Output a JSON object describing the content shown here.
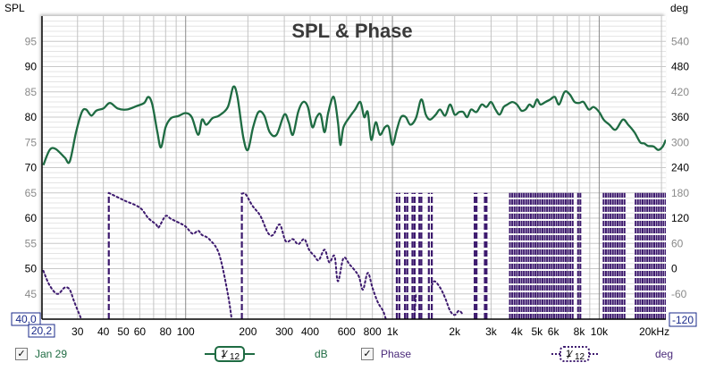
{
  "chart_data": {
    "type": "line",
    "title": "SPL & Phase",
    "left_axis": {
      "label": "SPL",
      "range": [
        40,
        100
      ],
      "ticks": [
        45,
        50,
        55,
        60,
        65,
        70,
        75,
        80,
        85,
        90,
        95
      ],
      "major_ticks": [
        50,
        60,
        70,
        80,
        90
      ]
    },
    "right_axis": {
      "label": "deg",
      "range": [
        -120,
        600
      ],
      "ticks": [
        -60,
        0,
        60,
        120,
        180,
        240,
        300,
        360,
        420,
        480,
        540
      ],
      "major_ticks": [
        0,
        120,
        240,
        360,
        480
      ]
    },
    "x_axis": {
      "scale": "log",
      "range": [
        20.2,
        21000
      ],
      "unit": "kHz",
      "tick_labels": [
        {
          "f": 30,
          "label": "30"
        },
        {
          "f": 40,
          "label": "40"
        },
        {
          "f": 50,
          "label": "50"
        },
        {
          "f": 60,
          "label": "60"
        },
        {
          "f": 80,
          "label": "80"
        },
        {
          "f": 100,
          "label": "100"
        },
        {
          "f": 200,
          "label": "200"
        },
        {
          "f": 300,
          "label": "300"
        },
        {
          "f": 400,
          "label": "400"
        },
        {
          "f": 600,
          "label": "600"
        },
        {
          "f": 800,
          "label": "800"
        },
        {
          "f": 1000,
          "label": "1k"
        },
        {
          "f": 2000,
          "label": "2k"
        },
        {
          "f": 3000,
          "label": "3k"
        },
        {
          "f": 4000,
          "label": "4k"
        },
        {
          "f": 5000,
          "label": "5k"
        },
        {
          "f": 6000,
          "label": "6k"
        },
        {
          "f": 8000,
          "label": "8k"
        },
        {
          "f": 10000,
          "label": "10k"
        },
        {
          "f": 20000,
          "label": "20kHz"
        }
      ]
    },
    "corner_labels": {
      "y_min": "40,0",
      "x_min": "20,2",
      "right_min": "-120"
    },
    "grid": true,
    "series": [
      {
        "name": "Jan 29",
        "axis": "left",
        "color": "#1e6b42",
        "style": "solid",
        "points": [
          [
            20.5,
            70.5
          ],
          [
            22,
            73.5
          ],
          [
            23.5,
            73.7
          ],
          [
            26,
            72
          ],
          [
            27.5,
            71.2
          ],
          [
            29.5,
            77
          ],
          [
            31.5,
            81
          ],
          [
            33,
            81.5
          ],
          [
            35,
            80.3
          ],
          [
            37,
            81.3
          ],
          [
            40,
            81.7
          ],
          [
            43,
            82.8
          ],
          [
            47,
            81.7
          ],
          [
            52,
            81.5
          ],
          [
            58,
            82.2
          ],
          [
            63,
            82.8
          ],
          [
            66,
            84
          ],
          [
            69,
            82.5
          ],
          [
            73,
            77
          ],
          [
            76,
            74
          ],
          [
            80,
            78
          ],
          [
            85,
            79.8
          ],
          [
            92,
            80.2
          ],
          [
            100,
            80.8
          ],
          [
            107,
            80
          ],
          [
            115,
            76.5
          ],
          [
            120,
            79.5
          ],
          [
            126,
            78.5
          ],
          [
            135,
            79.8
          ],
          [
            145,
            80.3
          ],
          [
            160,
            82
          ],
          [
            170,
            86
          ],
          [
            178,
            84
          ],
          [
            190,
            76
          ],
          [
            200,
            73.5
          ],
          [
            212,
            78
          ],
          [
            225,
            81
          ],
          [
            240,
            80.3
          ],
          [
            255,
            77
          ],
          [
            275,
            76.5
          ],
          [
            300,
            80.5
          ],
          [
            315,
            79
          ],
          [
            330,
            76.5
          ],
          [
            350,
            81
          ],
          [
            370,
            83
          ],
          [
            390,
            82
          ],
          [
            410,
            78
          ],
          [
            430,
            80
          ],
          [
            450,
            80.5
          ],
          [
            470,
            77
          ],
          [
            490,
            81
          ],
          [
            520,
            84
          ],
          [
            545,
            79
          ],
          [
            560,
            74.5
          ],
          [
            580,
            78
          ],
          [
            620,
            80
          ],
          [
            660,
            81.5
          ],
          [
            700,
            83
          ],
          [
            730,
            80
          ],
          [
            760,
            81
          ],
          [
            790,
            75.5
          ],
          [
            830,
            79
          ],
          [
            870,
            76.5
          ],
          [
            920,
            78
          ],
          [
            960,
            78
          ],
          [
            1000,
            74.5
          ],
          [
            1050,
            77.5
          ],
          [
            1100,
            80
          ],
          [
            1160,
            80
          ],
          [
            1220,
            78.5
          ],
          [
            1300,
            79.8
          ],
          [
            1380,
            83.5
          ],
          [
            1450,
            80.5
          ],
          [
            1520,
            79.5
          ],
          [
            1620,
            80.5
          ],
          [
            1700,
            81.5
          ],
          [
            1800,
            80.3
          ],
          [
            1900,
            82.5
          ],
          [
            2000,
            80.5
          ],
          [
            2100,
            81
          ],
          [
            2200,
            81
          ],
          [
            2300,
            80
          ],
          [
            2400,
            81.5
          ],
          [
            2550,
            81
          ],
          [
            2700,
            82.5
          ],
          [
            2850,
            82
          ],
          [
            3000,
            83
          ],
          [
            3150,
            81.5
          ],
          [
            3300,
            80.5
          ],
          [
            3450,
            82
          ],
          [
            3600,
            82.5
          ],
          [
            3800,
            83
          ],
          [
            4000,
            82.5
          ],
          [
            4200,
            81.3
          ],
          [
            4400,
            81.5
          ],
          [
            4600,
            82.5
          ],
          [
            4800,
            82
          ],
          [
            5000,
            83.5
          ],
          [
            5200,
            82.5
          ],
          [
            5500,
            83
          ],
          [
            5800,
            83.5
          ],
          [
            6100,
            84
          ],
          [
            6400,
            82.5
          ],
          [
            6800,
            85
          ],
          [
            7200,
            84.5
          ],
          [
            7600,
            83
          ],
          [
            8000,
            82.8
          ],
          [
            8400,
            83
          ],
          [
            8900,
            81.5
          ],
          [
            9400,
            82
          ],
          [
            10000,
            81
          ],
          [
            10500,
            79.5
          ],
          [
            11200,
            78.5
          ],
          [
            12000,
            77.5
          ],
          [
            13000,
            79.5
          ],
          [
            13800,
            78.5
          ],
          [
            14800,
            77
          ],
          [
            15800,
            75
          ],
          [
            16500,
            74.8
          ],
          [
            17200,
            74.3
          ],
          [
            18300,
            74.2
          ],
          [
            19300,
            73.5
          ],
          [
            20300,
            74.2
          ],
          [
            21000,
            75.5
          ]
        ]
      },
      {
        "name": "Phase",
        "axis": "right",
        "color": "#3d1a6e",
        "style": "dotted",
        "wrap_at": [
          -120,
          180
        ],
        "points": [
          [
            20.5,
            -5
          ],
          [
            22,
            -40
          ],
          [
            24,
            -60
          ],
          [
            26,
            -45
          ],
          [
            27.5,
            -50
          ],
          [
            29,
            -80
          ],
          [
            31,
            -115
          ],
          [
            32,
            -130
          ],
          [
            42.5,
            180
          ],
          [
            50,
            163
          ],
          [
            60,
            145
          ],
          [
            66,
            120
          ],
          [
            72,
            105
          ],
          [
            74,
            98
          ],
          [
            80,
            125
          ],
          [
            85,
            118
          ],
          [
            92,
            110
          ],
          [
            100,
            100
          ],
          [
            108,
            83
          ],
          [
            115,
            90
          ],
          [
            120,
            80
          ],
          [
            130,
            70
          ],
          [
            145,
            35
          ],
          [
            160,
            -60
          ],
          [
            168,
            -130
          ],
          [
            187,
            178
          ],
          [
            195,
            177
          ],
          [
            210,
            150
          ],
          [
            230,
            125
          ],
          [
            250,
            85
          ],
          [
            265,
            80
          ],
          [
            285,
            105
          ],
          [
            305,
            65
          ],
          [
            330,
            70
          ],
          [
            350,
            58
          ],
          [
            375,
            70
          ],
          [
            395,
            45
          ],
          [
            420,
            30
          ],
          [
            440,
            20
          ],
          [
            470,
            45
          ],
          [
            495,
            15
          ],
          [
            525,
            30
          ],
          [
            545,
            -30
          ],
          [
            580,
            25
          ],
          [
            620,
            10
          ],
          [
            660,
            -5
          ],
          [
            690,
            -20
          ],
          [
            720,
            -50
          ],
          [
            760,
            -10
          ],
          [
            800,
            -45
          ],
          [
            850,
            -80
          ],
          [
            900,
            -100
          ],
          [
            930,
            -120
          ],
          [
            1050,
            175
          ],
          [
            1080,
            -110
          ],
          [
            1150,
            175
          ],
          [
            1180,
            -110
          ],
          [
            1250,
            175
          ],
          [
            1280,
            -110
          ],
          [
            1300,
            -60
          ],
          [
            1350,
            175
          ],
          [
            1380,
            -110
          ],
          [
            1500,
            175
          ],
          [
            1550,
            -40
          ],
          [
            1600,
            -30
          ],
          [
            1700,
            -45
          ],
          [
            1800,
            -70
          ],
          [
            1900,
            -100
          ],
          [
            2000,
            -110
          ],
          [
            2100,
            -100
          ],
          [
            2200,
            -110
          ],
          [
            2500,
            175
          ],
          [
            2550,
            -120
          ],
          [
            2800,
            175
          ],
          [
            2850,
            -120
          ]
        ],
        "dense_wrap_bands_hz": [
          [
            3700,
            7600
          ],
          [
            7900,
            8300
          ],
          [
            10500,
            13500
          ],
          [
            15000,
            21000
          ]
        ]
      }
    ]
  },
  "legend": {
    "items": [
      {
        "label": "Jan 29",
        "checked": true,
        "smoothing": {
          "num": "1",
          "den": "12"
        },
        "unit": "dB"
      },
      {
        "label": "Phase",
        "checked": true,
        "smoothing": {
          "num": "1",
          "den": "12"
        },
        "unit": "deg"
      }
    ],
    "check_glyph": "✓"
  }
}
